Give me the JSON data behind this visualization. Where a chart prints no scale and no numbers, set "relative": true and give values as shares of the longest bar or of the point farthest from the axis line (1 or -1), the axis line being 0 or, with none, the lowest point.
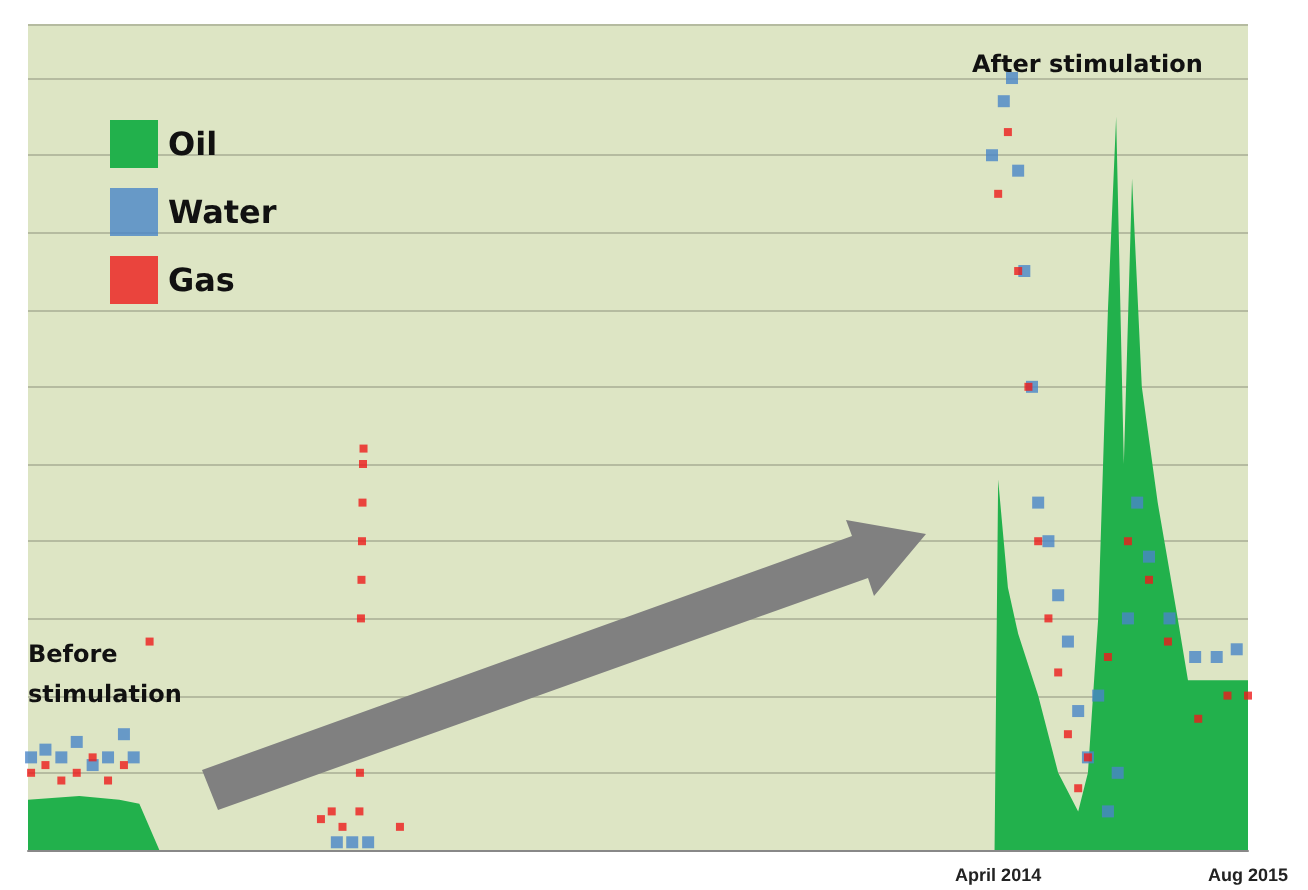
{
  "chart_data": {
    "type": "scatter",
    "relative": true,
    "grid": "y",
    "legend": "top left",
    "annotations": [
      "Before stimulation",
      "After stimulation"
    ],
    "xlim": [
      "2009-01-26",
      "2015-08-01"
    ],
    "xticks": [
      {
        "value": "2014-04-01",
        "label": "April 2014"
      },
      {
        "value": "2015-08-01",
        "label": "Aug 2015"
      }
    ],
    "series": [
      {
        "name": "Oil",
        "type": "area",
        "color": "#22b14c",
        "x": [
          "2009-01-26",
          "2009-05-06",
          "2009-07-23",
          "2009-08-31",
          "2009-10-09",
          "2014-03-25",
          "2014-04-01",
          "2014-04-20",
          "2014-05-10",
          "2014-06-18",
          "2014-07-27",
          "2014-09-04",
          "2014-09-23",
          "2014-10-13",
          "2014-11-01",
          "2014-11-17",
          "2014-12-02",
          "2014-12-18",
          "2015-01-06",
          "2015-02-06",
          "2015-03-17",
          "2015-04-06",
          "2015-05-14",
          "2015-06-22",
          "2015-08-01"
        ],
        "values": [
          0.065,
          0.07,
          0.065,
          0.06,
          0,
          0,
          0.48,
          0.34,
          0.28,
          0.2,
          0.1,
          0.05,
          0.1,
          0.3,
          0.7,
          0.95,
          0.5,
          0.87,
          0.6,
          0.45,
          0.3,
          0.22,
          0.22,
          0.22,
          0.22
        ]
      },
      {
        "name": "Water",
        "color": "#4a86c8",
        "marker": "square",
        "x": [
          "2009-02-01",
          "2009-03-01",
          "2009-04-01",
          "2009-05-01",
          "2009-06-01",
          "2009-07-01",
          "2009-08-01",
          "2009-08-20",
          "2010-09-20",
          "2010-10-20",
          "2010-11-20",
          "2014-03-20",
          "2014-04-12",
          "2014-04-28",
          "2014-05-10",
          "2014-05-22",
          "2014-06-06",
          "2014-06-18",
          "2014-07-08",
          "2014-07-27",
          "2014-08-15",
          "2014-09-04",
          "2014-09-23",
          "2014-10-13",
          "2014-11-01",
          "2014-11-20",
          "2014-12-10",
          "2014-12-28",
          "2015-01-20",
          "2015-03-01",
          "2015-04-20",
          "2015-06-01",
          "2015-07-10"
        ],
        "values": [
          0.12,
          0.13,
          0.12,
          0.14,
          0.11,
          0.12,
          0.15,
          0.12,
          0.01,
          0.01,
          0.01,
          0.9,
          0.97,
          1,
          0.88,
          0.75,
          0.6,
          0.45,
          0.4,
          0.33,
          0.27,
          0.18,
          0.12,
          0.2,
          0.05,
          0.1,
          0.3,
          0.45,
          0.38,
          0.3,
          0.25,
          0.25,
          0.26
        ]
      },
      {
        "name": "Gas",
        "color": "#ee1c1c",
        "marker": "square",
        "x": [
          "2009-02-01",
          "2009-03-01",
          "2009-04-01",
          "2009-05-01",
          "2009-06-01",
          "2009-07-01",
          "2009-08-01",
          "2009-09-20",
          "2010-08-20",
          "2010-09-10",
          "2010-10-01",
          "2010-11-03",
          "2010-11-04",
          "2010-11-05",
          "2010-11-06",
          "2010-11-07",
          "2010-11-08",
          "2010-11-09",
          "2010-11-10",
          "2010-11-11",
          "2011-01-21",
          "2014-04-01",
          "2014-04-20",
          "2014-05-10",
          "2014-05-30",
          "2014-06-18",
          "2014-07-08",
          "2014-07-27",
          "2014-08-15",
          "2014-09-04",
          "2014-09-23",
          "2014-11-01",
          "2014-12-10",
          "2015-01-20",
          "2015-02-26",
          "2015-04-26",
          "2015-06-22",
          "2015-08-01"
        ],
        "values": [
          0.1,
          0.11,
          0.09,
          0.1,
          0.12,
          0.09,
          0.11,
          0.27,
          0.04,
          0.05,
          0.03,
          0.05,
          0.1,
          null,
          0.3,
          0.35,
          0.4,
          0.45,
          0.5,
          0.52,
          0.03,
          0.85,
          0.93,
          0.75,
          0.6,
          0.4,
          0.3,
          0.23,
          0.15,
          0.08,
          0.12,
          0.25,
          0.4,
          0.35,
          0.27,
          0.17,
          0.2,
          0.2
        ]
      }
    ]
  }
}
